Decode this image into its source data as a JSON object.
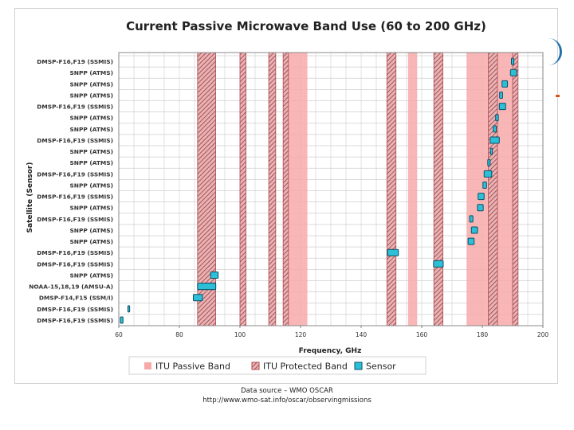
{
  "chart_data": {
    "type": "bar",
    "title": "Current Passive Microwave Band Use (60 to 200 GHz)",
    "xlabel": "Frequency, GHz",
    "ylabel": "Satellite (Sensor)",
    "xlim": [
      60,
      200
    ],
    "xticks": [
      60,
      80,
      100,
      120,
      140,
      160,
      180,
      200
    ],
    "grid": true,
    "legend_position": "bottom",
    "categories": [
      "DMSP-F16,F19 (SSMIS)",
      "SNPP (ATMS)",
      "SNPP (ATMS)",
      "SNPP (ATMS)",
      "DMSP-F16,F19 (SSMIS)",
      "SNPP (ATMS)",
      "SNPP (ATMS)",
      "DMSP-F16,F19 (SSMIS)",
      "SNPP (ATMS)",
      "SNPP (ATMS)",
      "DMSP-F16,F19 (SSMIS)",
      "SNPP (ATMS)",
      "DMSP-F16,F19 (SSMIS)",
      "SNPP (ATMS)",
      "DMSP-F16,F19 (SSMIS)",
      "SNPP (ATMS)",
      "SNPP (ATMS)",
      "DMSP-F16,F19 (SSMIS)",
      "DMSP-F16,F19 (SSMIS)",
      "SNPP (ATMS)",
      "NOAA-15,18,19 (AMSU-A)",
      "DMSP-F14,F15 (SSM/I)",
      "DMSP-F16,F19 (SSMIS)",
      "DMSP-F16,F19 (SSMIS)"
    ],
    "series": [
      {
        "name": "Sensor",
        "color": "#2bc0d8",
        "bands": [
          [
            189.6,
            190.4
          ],
          [
            189.3,
            191.3
          ],
          [
            186.5,
            188.3
          ],
          [
            185.7,
            186.7
          ],
          [
            185.6,
            187.7
          ],
          [
            184.4,
            185.3
          ],
          [
            183.6,
            184.6
          ],
          [
            182.6,
            185.6
          ],
          [
            182.7,
            183.3
          ],
          [
            181.8,
            182.6
          ],
          [
            180.6,
            183.1
          ],
          [
            180.2,
            181.4
          ],
          [
            178.6,
            180.6
          ],
          [
            178.4,
            180.3
          ],
          [
            175.8,
            176.9
          ],
          [
            176.4,
            178.4
          ],
          [
            175.3,
            177.3
          ],
          [
            148.7,
            152.3
          ],
          [
            163.9,
            167.1
          ],
          [
            90.3,
            92.8
          ],
          [
            87.0,
            92.0
          ],
          [
            86.0,
            92.0
          ],
          [
            84.6,
            87.6
          ],
          [
            63.0,
            63.6
          ],
          [
            60.5,
            61.4
          ]
        ],
        "rows": [
          0,
          1,
          2,
          3,
          4,
          5,
          6,
          7,
          8,
          9,
          10,
          11,
          12,
          13,
          14,
          15,
          16,
          17,
          18,
          19,
          20,
          20,
          21,
          22,
          23
        ]
      }
    ],
    "itu_passive_bands": [
      [
        86,
        92
      ],
      [
        114.25,
        116
      ],
      [
        116,
        122.25
      ],
      [
        148.5,
        151.5
      ],
      [
        155.5,
        158.5
      ],
      [
        164,
        167
      ],
      [
        174.8,
        182
      ],
      [
        182,
        185
      ],
      [
        185,
        190
      ],
      [
        190,
        191.8
      ]
    ],
    "itu_protected_bands": [
      [
        86,
        92
      ],
      [
        100,
        102
      ],
      [
        109.5,
        111.8
      ],
      [
        114.25,
        116
      ],
      [
        148.5,
        151.5
      ],
      [
        164,
        167
      ],
      [
        182,
        185
      ],
      [
        190,
        191.8
      ]
    ],
    "legend": [
      "ITU Passive Band",
      "ITU Protected Band",
      "Sensor"
    ],
    "colors": {
      "passive": "#f7a9a9",
      "protected": "#b04a52",
      "sensor": "#2bc0d8",
      "grid": "#cfcfcf"
    }
  },
  "source": {
    "line1": "Data source – WMO OSCAR",
    "line2": "http://www.wmo-sat.info/oscar/observingmissions"
  }
}
